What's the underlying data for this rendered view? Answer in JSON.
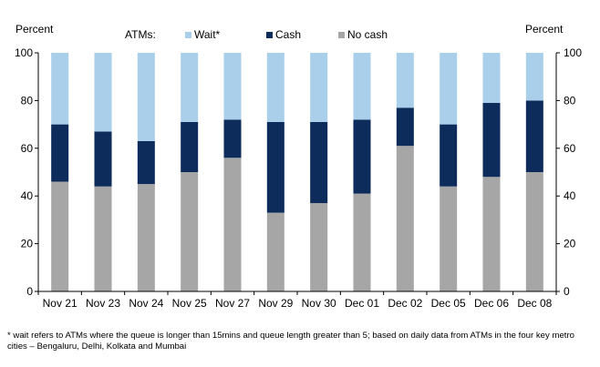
{
  "chart_data": {
    "type": "bar",
    "stacked": true,
    "percent_stacked": true,
    "categories": [
      "Nov 21",
      "Nov 23",
      "Nov 24",
      "Nov 25",
      "Nov 27",
      "Nov 29",
      "Nov 30",
      "Dec 01",
      "Dec 02",
      "Dec 05",
      "Dec 06",
      "Dec 08"
    ],
    "series": [
      {
        "name": "No cash",
        "color": "#a6a6a6",
        "values": [
          46,
          44,
          45,
          50,
          56,
          33,
          37,
          41,
          61,
          44,
          48,
          50
        ]
      },
      {
        "name": "Cash",
        "color": "#0d2b5b",
        "values": [
          24,
          23,
          18,
          21,
          16,
          38,
          34,
          31,
          16,
          26,
          31,
          30
        ]
      },
      {
        "name": "Wait*",
        "color": "#a9cfea",
        "values": [
          30,
          33,
          37,
          29,
          28,
          29,
          29,
          28,
          23,
          30,
          21,
          20
        ]
      }
    ],
    "ylim": [
      0,
      100
    ],
    "yticks": [
      0,
      20,
      40,
      60,
      80,
      100
    ],
    "ylabel_left": "Percent",
    "ylabel_right": "Percent",
    "legend_title": "ATMs:",
    "legend_order": [
      "Wait*",
      "Cash",
      "No cash"
    ],
    "legend_placement": "top",
    "grid": false,
    "footnote": "* wait refers to ATMs where the queue is longer than 15mins and queue length greater than 5; based on daily data from ATMs in the four key metro cities – Bengaluru, Delhi, Kolkata and Mumbai"
  }
}
